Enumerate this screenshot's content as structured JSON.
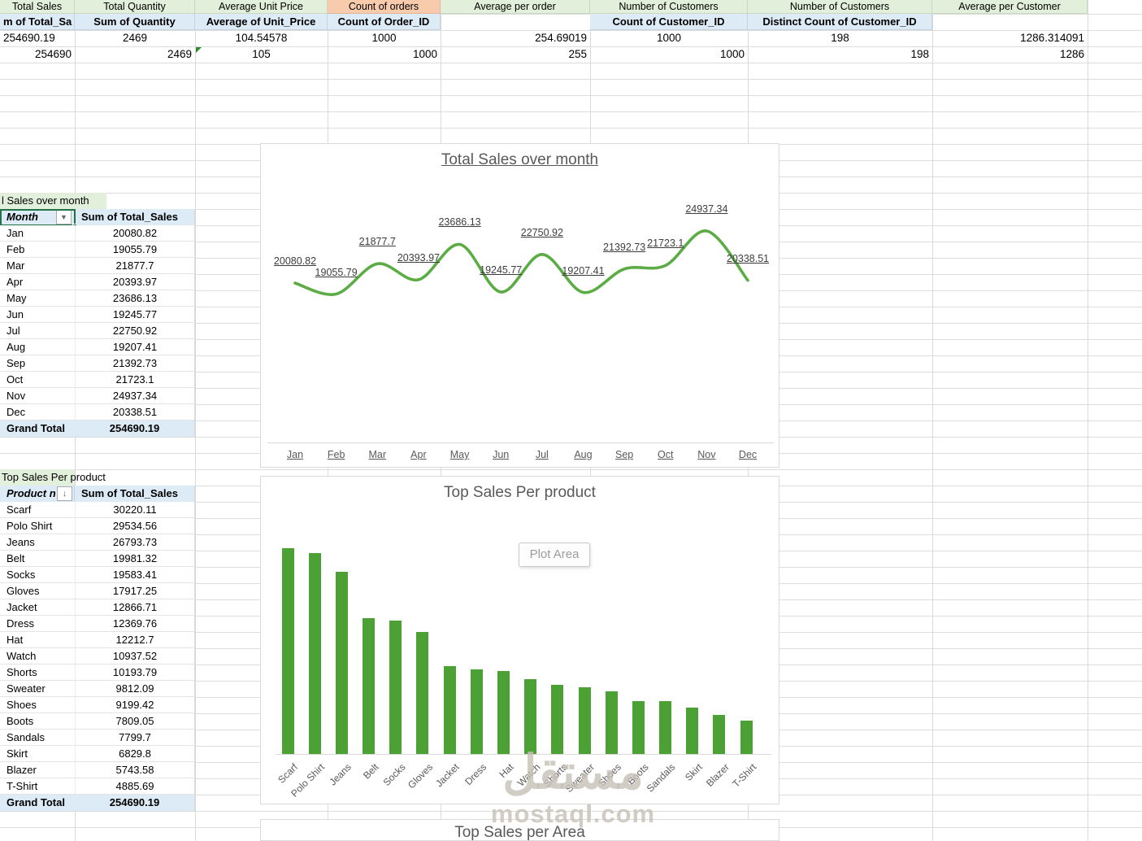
{
  "kpi": {
    "headers": [
      "Total Sales",
      "Total Quantity",
      "Average Unit Price",
      "Count of orders",
      "Average per order",
      "Number of Customers",
      "Number of Customers",
      "Average per Customer"
    ],
    "header_bgs": [
      "green",
      "green",
      "green",
      "orange",
      "green",
      "green",
      "green",
      "green"
    ],
    "subheaders": [
      "m of Total_Sa",
      "Sum of Quantity",
      "Average of Unit_Price",
      "Count of Order_ID",
      "",
      "Count of Customer_ID",
      "Distinct Count of Customer_ID",
      ""
    ],
    "values_row1": [
      "254690.19",
      "2469",
      "104.54578",
      "1000",
      "254.69019",
      "1000",
      "198",
      "1286.314091"
    ],
    "values_row2": [
      "254690",
      "2469",
      "105",
      "1000",
      "255",
      "1000",
      "198",
      "1286"
    ]
  },
  "pivot_month": {
    "title": "l Sales over month",
    "col1_header": "Month",
    "col2_header": "Sum of Total_Sales",
    "rows": [
      [
        "Jan",
        "20080.82"
      ],
      [
        "Feb",
        "19055.79"
      ],
      [
        "Mar",
        "21877.7"
      ],
      [
        "Apr",
        "20393.97"
      ],
      [
        "May",
        "23686.13"
      ],
      [
        "Jun",
        "19245.77"
      ],
      [
        "Jul",
        "22750.92"
      ],
      [
        "Aug",
        "19207.41"
      ],
      [
        "Sep",
        "21392.73"
      ],
      [
        "Oct",
        "21723.1"
      ],
      [
        "Nov",
        "24937.34"
      ],
      [
        "Dec",
        "20338.51"
      ]
    ],
    "grand_total_label": "Grand Total",
    "grand_total_value": "254690.19"
  },
  "pivot_product": {
    "title": "Top Sales Per product",
    "col1_header": "Product n",
    "col2_header": "Sum of Total_Sales",
    "rows": [
      [
        "Scarf",
        "30220.11"
      ],
      [
        "Polo Shirt",
        "29534.56"
      ],
      [
        "Jeans",
        "26793.73"
      ],
      [
        "Belt",
        "19981.32"
      ],
      [
        "Socks",
        "19583.41"
      ],
      [
        "Gloves",
        "17917.25"
      ],
      [
        "Jacket",
        "12866.71"
      ],
      [
        "Dress",
        "12369.76"
      ],
      [
        "Hat",
        "12212.7"
      ],
      [
        "Watch",
        "10937.52"
      ],
      [
        "Shorts",
        "10193.79"
      ],
      [
        "Sweater",
        "9812.09"
      ],
      [
        "Shoes",
        "9199.42"
      ],
      [
        "Boots",
        "7809.05"
      ],
      [
        "Sandals",
        "7799.7"
      ],
      [
        "Skirt",
        "6829.8"
      ],
      [
        "Blazer",
        "5743.58"
      ],
      [
        "T-Shirt",
        "4885.69"
      ]
    ],
    "grand_total_label": "Grand Total",
    "grand_total_value": "254690.19"
  },
  "chart_data": [
    {
      "type": "line",
      "title": "Total Sales over month",
      "x": [
        "Jan",
        "Feb",
        "Mar",
        "Apr",
        "May",
        "Jun",
        "Jul",
        "Aug",
        "Sep",
        "Oct",
        "Nov",
        "Dec"
      ],
      "values": [
        20080.82,
        19055.79,
        21877.7,
        20393.97,
        23686.13,
        19245.77,
        22750.92,
        19207.41,
        21392.73,
        21723.1,
        24937.34,
        20338.51
      ],
      "series_color": "#5BAC45",
      "data_labels": true,
      "labels_underlined": true,
      "smooth": true,
      "legend": "none"
    },
    {
      "type": "bar",
      "title": "Top Sales Per product",
      "categories": [
        "Scarf",
        "Polo Shirt",
        "Jeans",
        "Belt",
        "Socks",
        "Gloves",
        "Jacket",
        "Dress",
        "Hat",
        "Watch",
        "Shorts",
        "Sweater",
        "Shoes",
        "Boots",
        "Sandals",
        "Skirt",
        "Blazer",
        "T-Shirt"
      ],
      "values": [
        30220.11,
        29534.56,
        26793.73,
        19981.32,
        19583.41,
        17917.25,
        12866.71,
        12369.76,
        12212.7,
        10937.52,
        10193.79,
        9812.09,
        9199.42,
        7809.05,
        7799.7,
        6829.8,
        5743.58,
        4885.69
      ],
      "bar_color": "#4CA135",
      "plot_area_tooltip": "Plot Area",
      "legend": "none"
    },
    {
      "type": "bar",
      "title": "Top Sales per Area"
    }
  ],
  "icons": {
    "month_filter_dropdown": "dropdown-arrow",
    "product_sort": "sort-descending-arrow"
  },
  "colors": {
    "header_green": "#E2EFDA",
    "header_orange": "#F8CBAD",
    "header_blue": "#DDEBF7",
    "line_green": "#5BAC45",
    "bar_green": "#4CA135",
    "chart_text_gray": "#595959",
    "selection_green": "#217346"
  },
  "watermark": {
    "logo": "مستقل",
    "text": "mostaql.com"
  }
}
